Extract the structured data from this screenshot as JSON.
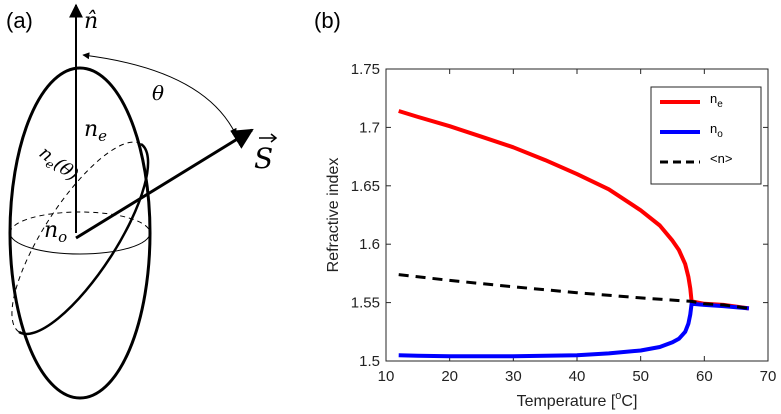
{
  "panel_a": {
    "label": "(a)",
    "n_hat": "n̂",
    "theta": "θ",
    "ne": "n",
    "ne_sub": "e",
    "ne_theta_main": "n",
    "ne_theta_sub": "e",
    "ne_theta_arg": "(θ)",
    "no": "n",
    "no_sub": "o",
    "S": "S"
  },
  "panel_b": {
    "label": "(b)"
  },
  "chart_data": {
    "type": "line",
    "title": "",
    "xlabel_main": "Temperature [",
    "xlabel_sup": "o",
    "xlabel_end": "C]",
    "ylabel": "Refractive index",
    "xlim": [
      10,
      70
    ],
    "ylim": [
      1.5,
      1.75
    ],
    "xticks": [
      "10",
      "20",
      "30",
      "40",
      "50",
      "60",
      "70"
    ],
    "yticks": [
      "1.5",
      "1.55",
      "1.6",
      "1.65",
      "1.7",
      "1.75"
    ],
    "grid": false,
    "legend_position": "top-right",
    "series": [
      {
        "name": "n",
        "sub": "e",
        "color": "#ff0000",
        "style": "solid",
        "x": [
          12,
          15,
          20,
          25,
          30,
          35,
          40,
          45,
          50,
          53,
          55,
          56,
          57,
          57.5,
          57.8,
          58,
          60,
          63,
          67
        ],
        "y": [
          1.714,
          1.709,
          1.701,
          1.692,
          1.683,
          1.672,
          1.66,
          1.647,
          1.629,
          1.616,
          1.603,
          1.595,
          1.583,
          1.572,
          1.562,
          1.551,
          1.549,
          1.548,
          1.545
        ]
      },
      {
        "name": "n",
        "sub": "o",
        "color": "#0000ff",
        "style": "solid",
        "x": [
          12,
          15,
          20,
          25,
          30,
          35,
          40,
          45,
          50,
          53,
          55,
          56,
          57,
          57.5,
          57.8,
          58,
          60,
          63,
          67
        ],
        "y": [
          1.505,
          1.5045,
          1.504,
          1.504,
          1.504,
          1.5045,
          1.505,
          1.5065,
          1.509,
          1.512,
          1.516,
          1.519,
          1.525,
          1.532,
          1.54,
          1.549,
          1.548,
          1.547,
          1.545
        ]
      },
      {
        "name": "<n>",
        "sub": "",
        "color": "#000000",
        "style": "dashed",
        "x": [
          12,
          20,
          30,
          40,
          50,
          58,
          60,
          63,
          67
        ],
        "y": [
          1.574,
          1.569,
          1.5635,
          1.5585,
          1.554,
          1.551,
          1.549,
          1.548,
          1.545
        ]
      }
    ]
  }
}
